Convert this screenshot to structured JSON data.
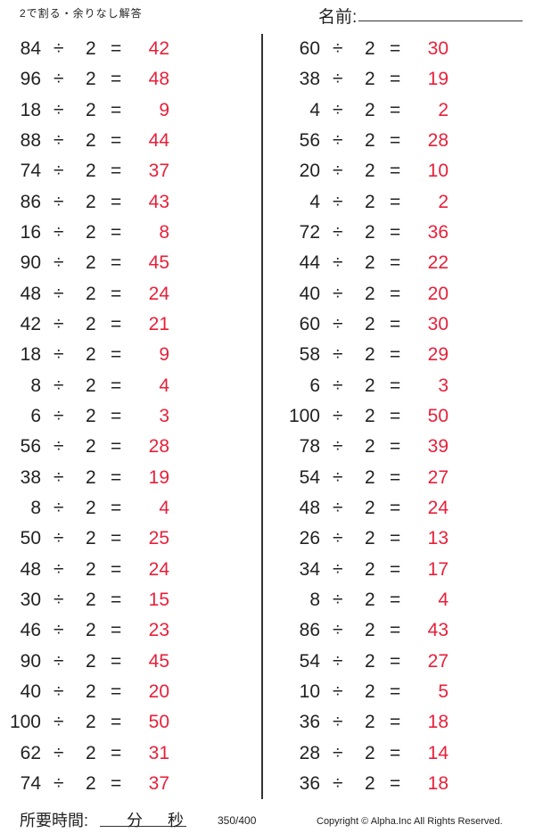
{
  "header": {
    "title": "2で割る・余りなし解答",
    "name_label": "名前:"
  },
  "operator": "÷",
  "divisor": "2",
  "equals": "=",
  "left": [
    {
      "dividend": "84",
      "answer": "42"
    },
    {
      "dividend": "96",
      "answer": "48"
    },
    {
      "dividend": "18",
      "answer": "9"
    },
    {
      "dividend": "88",
      "answer": "44"
    },
    {
      "dividend": "74",
      "answer": "37"
    },
    {
      "dividend": "86",
      "answer": "43"
    },
    {
      "dividend": "16",
      "answer": "8"
    },
    {
      "dividend": "90",
      "answer": "45"
    },
    {
      "dividend": "48",
      "answer": "24"
    },
    {
      "dividend": "42",
      "answer": "21"
    },
    {
      "dividend": "18",
      "answer": "9"
    },
    {
      "dividend": "8",
      "answer": "4"
    },
    {
      "dividend": "6",
      "answer": "3"
    },
    {
      "dividend": "56",
      "answer": "28"
    },
    {
      "dividend": "38",
      "answer": "19"
    },
    {
      "dividend": "8",
      "answer": "4"
    },
    {
      "dividend": "50",
      "answer": "25"
    },
    {
      "dividend": "48",
      "answer": "24"
    },
    {
      "dividend": "30",
      "answer": "15"
    },
    {
      "dividend": "46",
      "answer": "23"
    },
    {
      "dividend": "90",
      "answer": "45"
    },
    {
      "dividend": "40",
      "answer": "20"
    },
    {
      "dividend": "100",
      "answer": "50"
    },
    {
      "dividend": "62",
      "answer": "31"
    },
    {
      "dividend": "74",
      "answer": "37"
    }
  ],
  "right": [
    {
      "dividend": "60",
      "answer": "30"
    },
    {
      "dividend": "38",
      "answer": "19"
    },
    {
      "dividend": "4",
      "answer": "2"
    },
    {
      "dividend": "56",
      "answer": "28"
    },
    {
      "dividend": "20",
      "answer": "10"
    },
    {
      "dividend": "4",
      "answer": "2"
    },
    {
      "dividend": "72",
      "answer": "36"
    },
    {
      "dividend": "44",
      "answer": "22"
    },
    {
      "dividend": "40",
      "answer": "20"
    },
    {
      "dividend": "60",
      "answer": "30"
    },
    {
      "dividend": "58",
      "answer": "29"
    },
    {
      "dividend": "6",
      "answer": "3"
    },
    {
      "dividend": "100",
      "answer": "50"
    },
    {
      "dividend": "78",
      "answer": "39"
    },
    {
      "dividend": "54",
      "answer": "27"
    },
    {
      "dividend": "48",
      "answer": "24"
    },
    {
      "dividend": "26",
      "answer": "13"
    },
    {
      "dividend": "34",
      "answer": "17"
    },
    {
      "dividend": "8",
      "answer": "4"
    },
    {
      "dividend": "86",
      "answer": "43"
    },
    {
      "dividend": "54",
      "answer": "27"
    },
    {
      "dividend": "10",
      "answer": "5"
    },
    {
      "dividend": "36",
      "answer": "18"
    },
    {
      "dividend": "28",
      "answer": "14"
    },
    {
      "dividend": "36",
      "answer": "18"
    }
  ],
  "footer": {
    "time_label": "所要時間:",
    "minutes_label": "分",
    "seconds_label": "秒",
    "page": "350/400",
    "copyright": "Copyright ©  Alpha.Inc All Rights Reserved."
  },
  "colors": {
    "answer": "#e8203a",
    "text": "#222222"
  }
}
